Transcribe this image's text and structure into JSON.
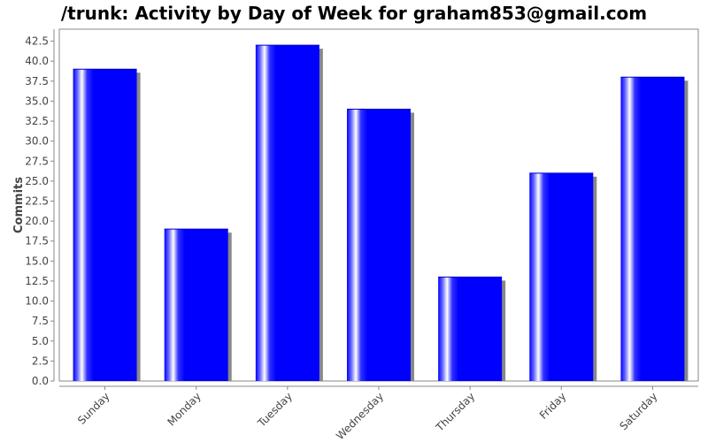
{
  "chart_data": {
    "type": "bar",
    "title": "/trunk: Activity by Day of Week for graham853@gmail.com",
    "xlabel": "",
    "ylabel": "Commits",
    "categories": [
      "Sunday",
      "Monday",
      "Tuesday",
      "Wednesday",
      "Thursday",
      "Friday",
      "Saturday"
    ],
    "values": [
      39,
      19,
      42,
      34,
      13,
      26,
      38
    ],
    "ylim": [
      0,
      44
    ],
    "yticks": [
      "0.0",
      "2.5",
      "5.0",
      "7.5",
      "10.0",
      "12.5",
      "15.0",
      "17.5",
      "20.0",
      "22.5",
      "25.0",
      "27.5",
      "30.0",
      "32.5",
      "35.0",
      "37.5",
      "40.0",
      "42.5"
    ],
    "grid": false,
    "legend": "none",
    "bar_color": "#0000ff",
    "shadow_color": "#888888"
  }
}
